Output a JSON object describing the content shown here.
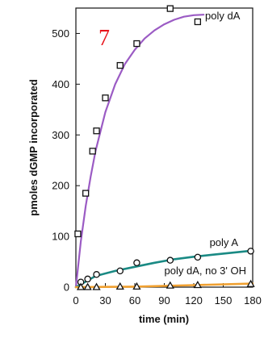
{
  "chart_data": {
    "type": "scatter",
    "panel_label": "7",
    "xlabel": "time (min)",
    "ylabel": "pmoles dGMP incorporated",
    "xlim": [
      0,
      180
    ],
    "ylim": [
      0,
      550
    ],
    "x_ticks": [
      0,
      30,
      60,
      90,
      120,
      150,
      180
    ],
    "y_ticks": [
      0,
      100,
      200,
      300,
      400,
      500
    ],
    "grid": false,
    "colors": {
      "panel_label": "#e8141b",
      "poly_dA": "#9b5bc4",
      "poly_A": "#1a8a84",
      "no_3OH": "#f0a030"
    },
    "series": [
      {
        "name": "poly dA",
        "marker": "square",
        "x": [
          2,
          10,
          17,
          21,
          30,
          45,
          62,
          96,
          124
        ],
        "y": [
          105,
          185,
          268,
          308,
          373,
          437,
          480,
          549,
          523
        ],
        "curve_x": [
          0,
          5,
          10,
          15,
          20,
          30,
          40,
          50,
          60,
          70,
          80,
          90,
          100,
          110,
          120,
          130
        ],
        "curve_y": [
          0,
          90,
          160,
          218,
          268,
          345,
          400,
          440,
          468,
          490,
          506,
          518,
          527,
          533,
          536,
          537
        ]
      },
      {
        "name": "poly A",
        "marker": "circle",
        "x": [
          5,
          12,
          21,
          45,
          62,
          96,
          124,
          178
        ],
        "y": [
          10,
          16,
          25,
          32,
          48,
          53,
          59,
          71
        ],
        "curve_x": [
          0,
          20,
          40,
          60,
          80,
          100,
          120,
          140,
          160,
          180
        ],
        "curve_y": [
          0,
          22,
          32,
          40,
          48,
          55,
          60,
          64,
          68,
          72
        ]
      },
      {
        "name": "poly dA, no 3' OH",
        "marker": "triangle",
        "x": [
          5,
          12,
          21,
          45,
          62,
          96,
          124,
          178
        ],
        "y": [
          0,
          0,
          0,
          1,
          1,
          3,
          4,
          6
        ],
        "curve_x": [
          0,
          60,
          120,
          180
        ],
        "curve_y": [
          0,
          1,
          4,
          7
        ]
      }
    ]
  }
}
